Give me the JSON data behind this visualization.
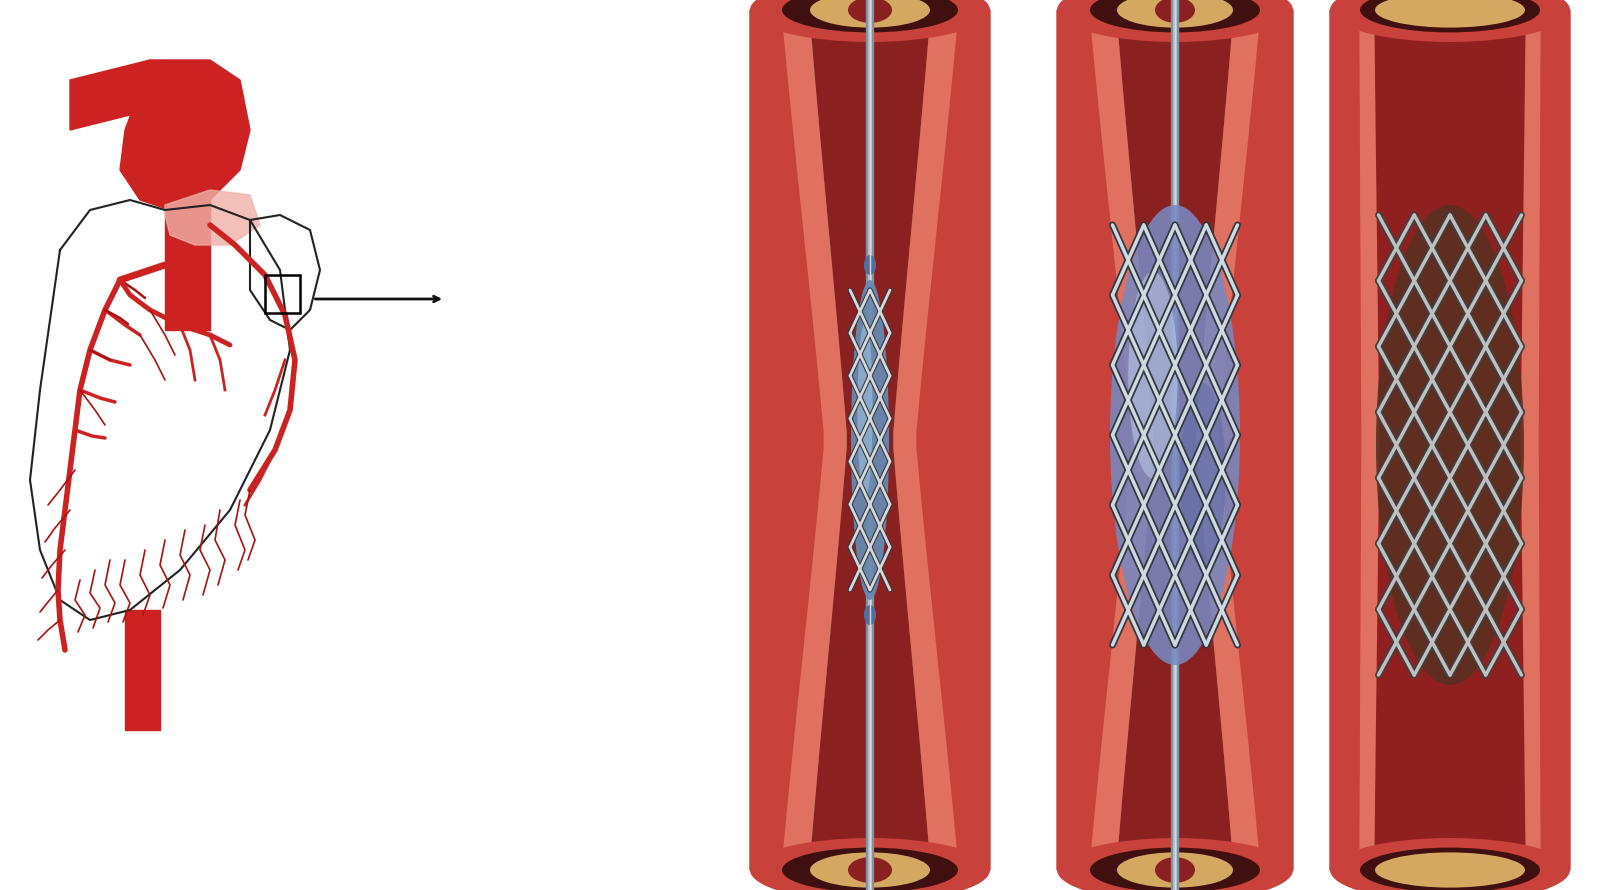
{
  "bg_color": "#ffffff",
  "fig_width": 16.0,
  "fig_height": 8.9,
  "dpi": 100,
  "colors": {
    "vessel_outer": "#c8413a",
    "vessel_inner_highlight": "#e07060",
    "vessel_shadow": "#a02820",
    "plaque": "#d4a860",
    "plaque_light": "#e0c080",
    "lumen": "#b03030",
    "lumen_dark": "#8a2020",
    "balloon_body": "#8090c8",
    "balloon_light": "#b0c0e0",
    "balloon_shadow": "#5060a0",
    "balloon2_body": "#7080b8",
    "catheter_outer": "#8090a0",
    "catheter_inner": "#b0bcc8",
    "stent_white": "#d8d8d8",
    "stent_shadow": "#505860",
    "stent_dark": "#303840",
    "stent3_white": "#c0c0c0",
    "stent3_shadow": "#404040",
    "heart_red": "#cc2222",
    "heart_red2": "#aa1111",
    "heart_outline": "#222222",
    "arrow": "#111111",
    "cap_dark": "#401010",
    "cap_top": "#d06060"
  }
}
